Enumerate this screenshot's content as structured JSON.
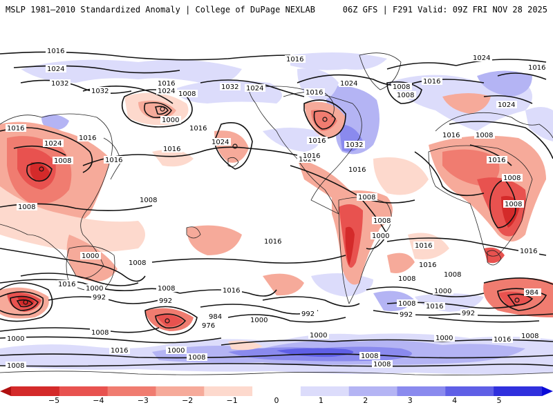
{
  "header": {
    "title_left": "MSLP 1981–2010 Standardized Anomaly | College of DuPage NEXLAB",
    "title_right": "06Z GFS | F291 Valid: 09Z FRI NOV 28 2025"
  },
  "colorbar": {
    "ticks": [
      "−5",
      "−4",
      "−3",
      "−2",
      "−1",
      "0",
      "1",
      "2",
      "3",
      "4",
      "5"
    ],
    "colors": [
      "#b01010",
      "#d42a2a",
      "#e8524f",
      "#f07c70",
      "#f6aa9a",
      "#fdd9cd",
      "#ffffff",
      "#dcdcfb",
      "#b4b4f4",
      "#8a8aee",
      "#5f5fe6",
      "#3030dd",
      "#0a0ad8"
    ]
  },
  "isobars": [
    {
      "label": "1016",
      "id": "l1"
    },
    {
      "label": "1024",
      "id": "l2"
    },
    {
      "label": "1032",
      "id": "l3"
    },
    {
      "label": "1032",
      "id": "l4"
    },
    {
      "label": "1016",
      "id": "l5"
    },
    {
      "label": "1024",
      "id": "l6"
    },
    {
      "label": "1016",
      "id": "l7"
    },
    {
      "label": "1008",
      "id": "l8"
    },
    {
      "label": "1000",
      "id": "l9"
    },
    {
      "label": "1016",
      "id": "l10"
    },
    {
      "label": "1016",
      "id": "l11"
    },
    {
      "label": "1024",
      "id": "l12"
    },
    {
      "label": "1008",
      "id": "l13"
    },
    {
      "label": "1016",
      "id": "l14"
    },
    {
      "label": "1032",
      "id": "l15"
    },
    {
      "label": "1024",
      "id": "l16"
    },
    {
      "label": "1016",
      "id": "l17"
    },
    {
      "label": "1024",
      "id": "l18"
    },
    {
      "label": "1016",
      "id": "l19"
    },
    {
      "label": "1024",
      "id": "l20"
    },
    {
      "label": "1016",
      "id": "l21"
    },
    {
      "label": "1024",
      "id": "l22"
    },
    {
      "label": "1016",
      "id": "l23"
    },
    {
      "label": "1032",
      "id": "l24"
    },
    {
      "label": "1024",
      "id": "l25"
    },
    {
      "label": "1016",
      "id": "l26"
    },
    {
      "label": "1008",
      "id": "l27"
    },
    {
      "label": "1016",
      "id": "l28"
    },
    {
      "label": "1008",
      "id": "l29"
    },
    {
      "label": "1008",
      "id": "l30"
    },
    {
      "label": "1016",
      "id": "l31"
    },
    {
      "label": "1008",
      "id": "l32"
    },
    {
      "label": "1008",
      "id": "l33"
    },
    {
      "label": "1024",
      "id": "l34"
    },
    {
      "label": "1016",
      "id": "l35"
    },
    {
      "label": "1016",
      "id": "l36"
    },
    {
      "label": "1008",
      "id": "l37"
    },
    {
      "label": "1016",
      "id": "l38"
    },
    {
      "label": "1008",
      "id": "l39"
    },
    {
      "label": "1008",
      "id": "l40"
    },
    {
      "label": "1016",
      "id": "l41"
    },
    {
      "label": "1016",
      "id": "l42"
    },
    {
      "label": "1000",
      "id": "l43"
    },
    {
      "label": "1008",
      "id": "l44"
    },
    {
      "label": "1016",
      "id": "l45"
    },
    {
      "label": "1016",
      "id": "l46"
    },
    {
      "label": "1008",
      "id": "l47"
    },
    {
      "label": "1000",
      "id": "l48"
    },
    {
      "label": "992",
      "id": "l49"
    },
    {
      "label": "992",
      "id": "l50"
    },
    {
      "label": "984",
      "id": "l51"
    },
    {
      "label": "976",
      "id": "l52"
    },
    {
      "label": "1000",
      "id": "l53"
    },
    {
      "label": "992",
      "id": "l54"
    },
    {
      "label": "1008",
      "id": "l55"
    },
    {
      "label": "1000",
      "id": "l56"
    },
    {
      "label": "992",
      "id": "l57"
    },
    {
      "label": "992",
      "id": "l58"
    },
    {
      "label": "1008",
      "id": "l59"
    },
    {
      "label": "1000",
      "id": "l60"
    },
    {
      "label": "984",
      "id": "l61"
    },
    {
      "label": "1000",
      "id": "l62"
    },
    {
      "label": "1008",
      "id": "l63"
    },
    {
      "label": "1016",
      "id": "l64"
    },
    {
      "label": "1000",
      "id": "l65"
    },
    {
      "label": "1008",
      "id": "l66"
    },
    {
      "label": "1008",
      "id": "l67"
    },
    {
      "label": "1000",
      "id": "l68"
    },
    {
      "label": "1008",
      "id": "l69"
    },
    {
      "label": "1016",
      "id": "l70"
    },
    {
      "label": "1008",
      "id": "l71"
    },
    {
      "label": "1008",
      "id": "l72"
    },
    {
      "label": "1000",
      "id": "l73"
    },
    {
      "label": "1016",
      "id": "l74"
    },
    {
      "label": "1008",
      "id": "l75"
    },
    {
      "label": "1008",
      "id": "l76"
    },
    {
      "label": "1016",
      "id": "l77"
    },
    {
      "label": "1016",
      "id": "l78"
    }
  ]
}
